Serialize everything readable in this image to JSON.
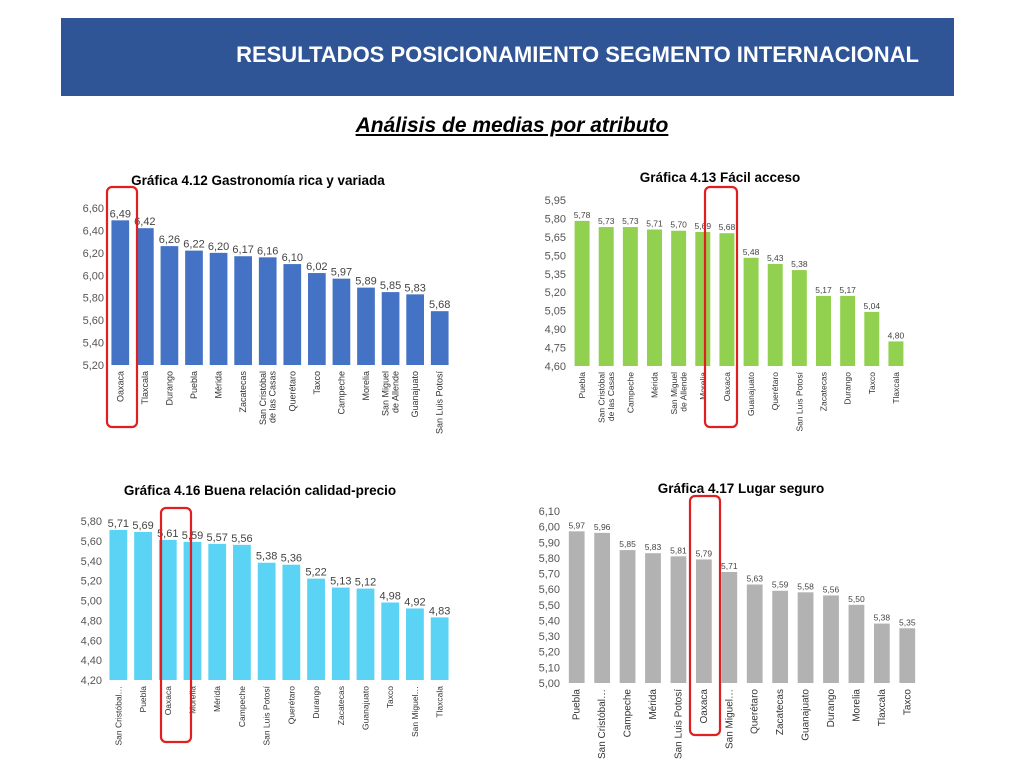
{
  "header": {
    "title": "RESULTADOS POSICIONAMIENTO SEGMENTO INTERNACIONAL",
    "subtitle": "Análisis de medias por atributo"
  },
  "colors": {
    "banner": "#2f5597",
    "highlight": "#e02020"
  },
  "chart_data": [
    {
      "type": "bar",
      "title": "Gráfica 4.12 Gastronomía rica y variada",
      "categories": [
        "Oaxaca",
        "Tlaxcala",
        "Durango",
        "Puebla",
        "Mérida",
        "Zacatecas",
        "San Cristóbal\nde las Casas",
        "Querétaro",
        "Taxco",
        "Campeche",
        "Morelia",
        "San Miguel\nde Allende",
        "Guanajuato",
        "San Luis Potosí"
      ],
      "values": [
        6.49,
        6.42,
        6.26,
        6.22,
        6.2,
        6.17,
        6.16,
        6.1,
        6.02,
        5.97,
        5.89,
        5.85,
        5.83,
        5.68
      ],
      "value_labels": [
        "6,49",
        "6,42",
        "6,26",
        "6,22",
        "6,20",
        "6,17",
        "6,16",
        "6,10",
        "6,02",
        "5,97",
        "5,89",
        "5,85",
        "5,83",
        "5,68"
      ],
      "ylim": [
        5.2,
        6.6
      ],
      "yticks": [
        "6,60",
        "6,40",
        "6,20",
        "6,00",
        "5,80",
        "5,60",
        "5,40",
        "5,20"
      ],
      "color": "#4472c4",
      "highlight": "Oaxaca",
      "xlabel": "",
      "ylabel": ""
    },
    {
      "type": "bar",
      "title": "Gráfica 4.13 Fácil acceso",
      "categories": [
        "Puebla",
        "San Cristóbal\nde las Casas",
        "Campeche",
        "Mérida",
        "San Miguel\nde Allende",
        "Morelia",
        "Oaxaca",
        "Guanajuato",
        "Querétaro",
        "San Luis Potosí",
        "Zacatecas",
        "Durango",
        "Taxco",
        "Tlaxcala"
      ],
      "values": [
        5.78,
        5.73,
        5.73,
        5.71,
        5.7,
        5.69,
        5.68,
        5.48,
        5.43,
        5.38,
        5.17,
        5.17,
        5.04,
        4.8
      ],
      "value_labels": [
        "5,78",
        "5,73",
        "5,73",
        "5,71",
        "5,70",
        "5,69",
        "5,68",
        "5,48",
        "5,43",
        "5,38",
        "5,17",
        "5,17",
        "5,04",
        "4,80"
      ],
      "ylim": [
        4.6,
        5.95
      ],
      "yticks": [
        "5,95",
        "5,80",
        "5,65",
        "5,50",
        "5,35",
        "5,20",
        "5,05",
        "4,90",
        "4,75",
        "4,60"
      ],
      "color": "#92d050",
      "highlight": "Oaxaca",
      "xlabel": "",
      "ylabel": ""
    },
    {
      "type": "bar",
      "title": "Gráfica 4.16 Buena relación calidad-precio",
      "categories": [
        "San Cristóbal…",
        "Puebla",
        "Oaxaca",
        "Morelia",
        "Mérida",
        "Campeche",
        "San Luis Potosí",
        "Querétaro",
        "Durango",
        "Zacatecas",
        "Guanajuato",
        "Taxco",
        "San Miguel…",
        "Tlaxcala"
      ],
      "values": [
        5.71,
        5.69,
        5.61,
        5.59,
        5.57,
        5.56,
        5.38,
        5.36,
        5.22,
        5.13,
        5.12,
        4.98,
        4.92,
        4.83
      ],
      "value_labels": [
        "5,71",
        "5,69",
        "5,61",
        "5,59",
        "5,57",
        "5,56",
        "5,38",
        "5,36",
        "5,22",
        "5,13",
        "5,12",
        "4,98",
        "4,92",
        "4,83"
      ],
      "ylim": [
        4.2,
        5.8
      ],
      "yticks": [
        "5,80",
        "5,60",
        "5,40",
        "5,20",
        "5,00",
        "4,80",
        "4,60",
        "4,40",
        "4,20"
      ],
      "color": "#5bd3f5",
      "highlight": "Oaxaca",
      "xlabel": "",
      "ylabel": ""
    },
    {
      "type": "bar",
      "title": "Gráfica 4.17 Lugar seguro",
      "categories": [
        "Puebla",
        "San Cristóbal…",
        "Campeche",
        "Mérida",
        "San Luis Potosí",
        "Oaxaca",
        "San Miguel…",
        "Querétaro",
        "Zacatecas",
        "Guanajuato",
        "Durango",
        "Morelia",
        "Tlaxcala",
        "Taxco"
      ],
      "values": [
        5.97,
        5.96,
        5.85,
        5.83,
        5.81,
        5.79,
        5.71,
        5.63,
        5.59,
        5.58,
        5.56,
        5.5,
        5.38,
        5.35
      ],
      "value_labels": [
        "5,97",
        "5,96",
        "5,85",
        "5,83",
        "5,81",
        "5,79",
        "5,71",
        "5,63",
        "5,59",
        "5,58",
        "5,56",
        "5,50",
        "5,38",
        "5,35"
      ],
      "ylim": [
        5.0,
        6.1
      ],
      "yticks": [
        "6,10",
        "6,00",
        "5,90",
        "5,80",
        "5,70",
        "5,60",
        "5,50",
        "5,40",
        "5,30",
        "5,20",
        "5,10",
        "5,00"
      ],
      "color": "#b2b2b2",
      "highlight": "Oaxaca",
      "xlabel": "",
      "ylabel": ""
    }
  ]
}
